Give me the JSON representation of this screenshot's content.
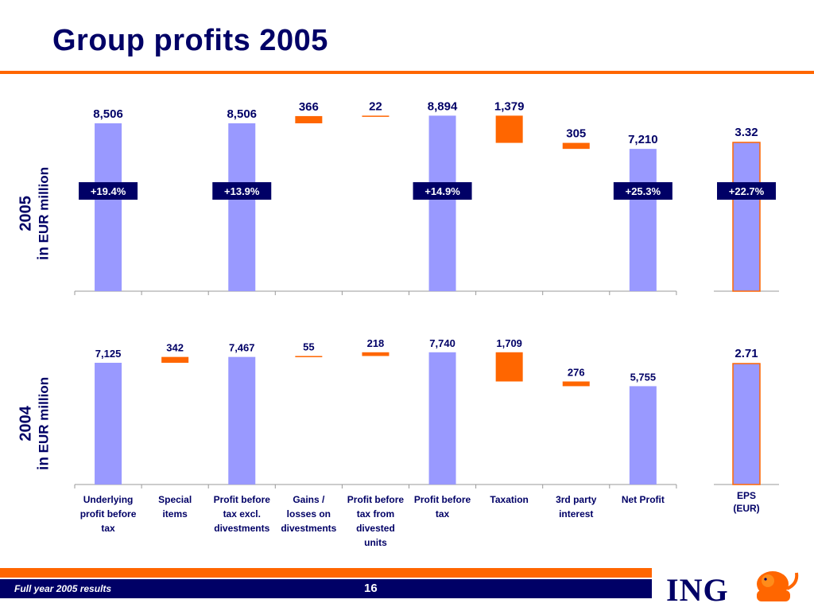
{
  "title": "Group profits 2005",
  "footer": {
    "left_text": "Full year 2005 results",
    "page_number": "16"
  },
  "logo": {
    "text": "ING"
  },
  "colors": {
    "bar": "#9999ff",
    "delta": "#ff6600",
    "navy": "#000066",
    "accent": "#ff6600"
  },
  "panels": {
    "p2005": {
      "year": "2005",
      "unit_prefix": "in",
      "unit": "EUR million"
    },
    "p2004": {
      "year": "2004",
      "unit_prefix": "in",
      "unit": "EUR million"
    }
  },
  "chart_data": [
    {
      "type": "bar",
      "title": "2005 in EUR million",
      "categories": [
        "Underlying profit before tax",
        "Special items",
        "Profit before tax excl. divestments",
        "Gains / losses on divestments",
        "Profit before tax from divested units",
        "Profit before tax",
        "Taxation",
        "3rd party interest",
        "Net Profit"
      ],
      "category_labels": [
        [
          "Underlying",
          "profit before",
          "tax"
        ],
        [
          "Special",
          "items"
        ],
        [
          "Profit before",
          "tax excl.",
          "divestments"
        ],
        [
          "Gains /",
          "losses on",
          "divestments"
        ],
        [
          "Profit before",
          "tax from",
          "divested",
          "units"
        ],
        [
          "Profit before",
          "tax"
        ],
        [
          "Taxation"
        ],
        [
          "3rd party",
          "interest"
        ],
        [
          "Net Profit"
        ]
      ],
      "series": [
        {
          "values": [
            8506,
            null,
            8506,
            366,
            22,
            8894,
            -1379,
            -305,
            7210
          ],
          "kind": [
            "total",
            "none",
            "total",
            "increase",
            "increase",
            "total",
            "decrease",
            "decrease",
            "total"
          ],
          "labels": [
            "8,506",
            "",
            "8,506",
            "366",
            "22",
            "8,894",
            "1,379",
            "305",
            "7,210"
          ],
          "growth": [
            "+19.4%",
            "",
            "+13.9%",
            "",
            "",
            "+14.9%",
            "",
            "",
            "+25.3%"
          ]
        }
      ],
      "eps": {
        "category": [
          "EPS",
          "(EUR)"
        ],
        "value": 3.32,
        "label": "3.32",
        "growth": "+22.7%"
      }
    },
    {
      "type": "bar",
      "title": "2004 in EUR million",
      "categories": [
        "Underlying profit before tax",
        "Special items",
        "Profit before tax excl. divestments",
        "Gains / losses on divestments",
        "Profit before tax from divested units",
        "Profit before tax",
        "Taxation",
        "3rd party interest",
        "Net Profit"
      ],
      "series": [
        {
          "values": [
            7125,
            342,
            7467,
            55,
            218,
            7740,
            -1709,
            -276,
            5755
          ],
          "kind": [
            "total",
            "increase",
            "total",
            "increase",
            "increase",
            "total",
            "decrease",
            "decrease",
            "total"
          ],
          "labels": [
            "7,125",
            "342",
            "7,467",
            "55",
            "218",
            "7,740",
            "1,709",
            "276",
            "5,755"
          ]
        }
      ],
      "eps": {
        "category": [
          "EPS",
          "(EUR)"
        ],
        "value": 2.71,
        "label": "2.71"
      }
    }
  ]
}
